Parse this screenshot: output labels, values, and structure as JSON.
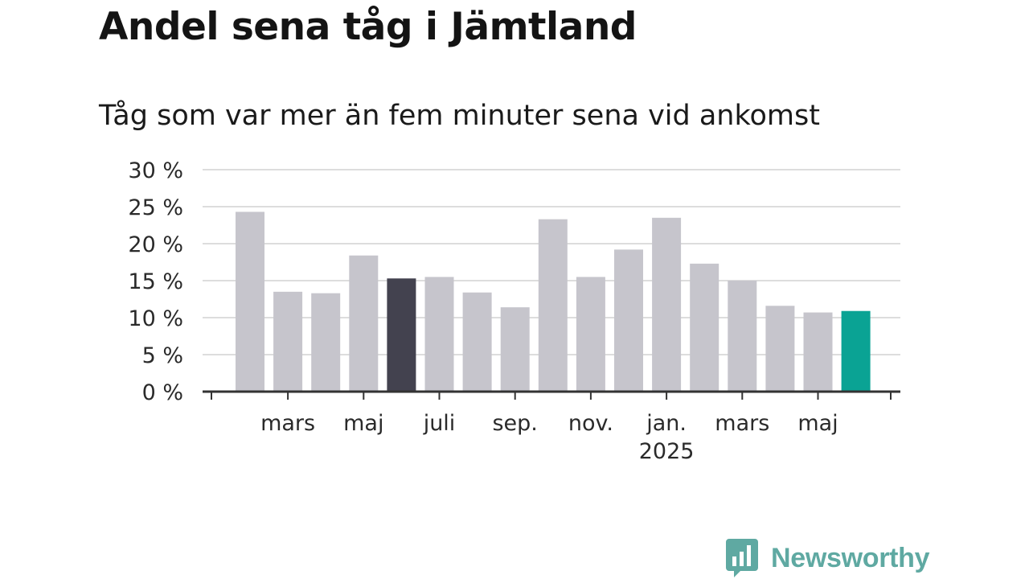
{
  "brand": {
    "name": "Newsworthy",
    "color": "#5fa9a2",
    "icon": "bar-chart-speech-bubble-icon"
  },
  "colors": {
    "bar_default": "#c6c5cc",
    "bar_highlight": "#43424f",
    "bar_latest": "#0aa394",
    "grid": "#dddddd",
    "axis": "#333333"
  },
  "chart_data": {
    "type": "bar",
    "title": "Andel sena tåg i Jämtland",
    "subtitle": "Tåg som var mer än fem minuter sena vid ankomst",
    "xlabel": "",
    "ylabel": "",
    "ylim": [
      0,
      30
    ],
    "yticks": [
      0,
      5,
      10,
      15,
      20,
      25,
      30
    ],
    "ytick_labels": [
      "0 %",
      "5 %",
      "10 %",
      "15 %",
      "20 %",
      "25 %",
      "30 %"
    ],
    "grid": true,
    "categories": [
      "2024-02",
      "2024-03",
      "2024-04",
      "2024-05",
      "2024-06",
      "2024-07",
      "2024-08",
      "2024-09",
      "2024-10",
      "2024-11",
      "2024-12",
      "2025-01",
      "2025-02",
      "2025-03",
      "2025-04",
      "2025-05",
      "2025-06"
    ],
    "values": [
      24.3,
      13.5,
      13.3,
      18.4,
      15.3,
      15.5,
      13.4,
      11.4,
      23.3,
      15.5,
      19.2,
      23.5,
      17.3,
      15.0,
      11.6,
      10.7,
      10.9
    ],
    "highlight": {
      "2024-06": "bar_highlight",
      "2025-06": "bar_latest"
    },
    "xtick_labels": [
      {
        "at": "2024-03",
        "text": "mars"
      },
      {
        "at": "2024-05",
        "text": "maj"
      },
      {
        "at": "2024-07",
        "text": "juli"
      },
      {
        "at": "2024-09",
        "text": "sep."
      },
      {
        "at": "2024-11",
        "text": "nov."
      },
      {
        "at": "2025-01",
        "text": "jan.",
        "sub": "2025"
      },
      {
        "at": "2025-03",
        "text": "mars"
      },
      {
        "at": "2025-05",
        "text": "maj"
      }
    ]
  }
}
